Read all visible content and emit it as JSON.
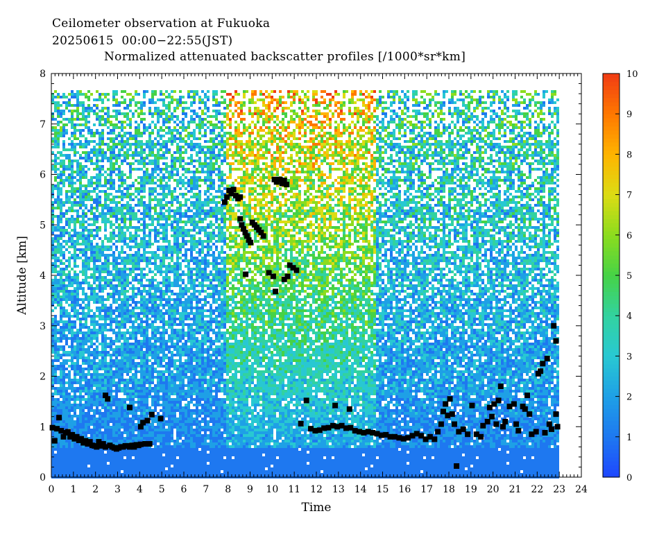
{
  "header": {
    "line1": "Ceilometer observation at Fukuoka",
    "line2": "20250615  00:00−22:55(JST)",
    "line3": "Normalized attenuated backscatter profiles [/1000*sr*km]"
  },
  "chart_data": {
    "type": "heatmap",
    "xlabel": "Time",
    "ylabel": "Altitude [km]",
    "xlim": [
      0,
      24
    ],
    "ylim": [
      0,
      8
    ],
    "x_ticks": [
      "0",
      "1",
      "2",
      "3",
      "4",
      "5",
      "6",
      "7",
      "8",
      "9",
      "10",
      "11",
      "12",
      "13",
      "14",
      "15",
      "16",
      "17",
      "18",
      "19",
      "20",
      "21",
      "22",
      "23",
      "24"
    ],
    "y_ticks": [
      "0",
      "1",
      "2",
      "3",
      "4",
      "5",
      "6",
      "7",
      "8"
    ],
    "data_extent": {
      "x": [
        0,
        22.92
      ],
      "y": [
        0,
        7.67
      ]
    },
    "colorbar": {
      "range": [
        0,
        10
      ],
      "ticks": [
        "0",
        "1",
        "2",
        "3",
        "4",
        "5",
        "6",
        "7",
        "8",
        "9",
        "10"
      ],
      "colors": [
        "#1e46ff",
        "#1e78f0",
        "#1ea0e6",
        "#28c8d2",
        "#32d2a0",
        "#46d246",
        "#8cdc1e",
        "#dcdc14",
        "#ffb400",
        "#ff7800",
        "#f03c14"
      ]
    },
    "background_regimes": [
      {
        "t_start": 0.0,
        "t_end": 7.8,
        "description_level_low": 1.0,
        "level_high": 3.5
      },
      {
        "t_start": 7.8,
        "t_end": 14.7,
        "description_level_low": 1.2,
        "level_high": 7.5
      },
      {
        "t_start": 14.7,
        "t_end": 22.92,
        "description_level_low": 1.0,
        "level_high": 3.8
      }
    ],
    "cloud_base_detections": [
      [
        0.05,
        0.98
      ],
      [
        0.15,
        0.72
      ],
      [
        0.25,
        0.96
      ],
      [
        0.35,
        1.18
      ],
      [
        0.45,
        0.92
      ],
      [
        0.55,
        0.8
      ],
      [
        0.65,
        0.88
      ],
      [
        0.75,
        0.9
      ],
      [
        0.85,
        0.8
      ],
      [
        0.95,
        0.84
      ],
      [
        1.05,
        0.76
      ],
      [
        1.15,
        0.8
      ],
      [
        1.25,
        0.73
      ],
      [
        1.35,
        0.76
      ],
      [
        1.45,
        0.68
      ],
      [
        1.55,
        0.72
      ],
      [
        1.65,
        0.66
      ],
      [
        1.75,
        0.7
      ],
      [
        1.85,
        0.63
      ],
      [
        1.95,
        0.62
      ],
      [
        2.05,
        0.6
      ],
      [
        2.15,
        0.7
      ],
      [
        2.25,
        0.62
      ],
      [
        2.35,
        0.66
      ],
      [
        2.45,
        0.6
      ],
      [
        2.45,
        1.62
      ],
      [
        2.55,
        1.55
      ],
      [
        2.65,
        0.63
      ],
      [
        2.75,
        0.6
      ],
      [
        2.85,
        0.58
      ],
      [
        2.95,
        0.56
      ],
      [
        3.05,
        0.58
      ],
      [
        3.15,
        0.6
      ],
      [
        3.25,
        0.6
      ],
      [
        3.35,
        0.62
      ],
      [
        3.45,
        0.62
      ],
      [
        3.55,
        0.6
      ],
      [
        3.65,
        0.63
      ],
      [
        3.75,
        0.6
      ],
      [
        3.85,
        0.64
      ],
      [
        3.55,
        1.38
      ],
      [
        3.95,
        0.63
      ],
      [
        4.05,
        0.65
      ],
      [
        4.05,
        1.0
      ],
      [
        4.15,
        1.08
      ],
      [
        4.25,
        0.66
      ],
      [
        4.35,
        1.12
      ],
      [
        4.45,
        0.66
      ],
      [
        4.55,
        1.24
      ],
      [
        4.95,
        1.16
      ],
      [
        7.85,
        5.45
      ],
      [
        7.95,
        5.55
      ],
      [
        8.05,
        5.68
      ],
      [
        8.15,
        5.62
      ],
      [
        8.25,
        5.7
      ],
      [
        8.35,
        5.58
      ],
      [
        8.45,
        5.52
      ],
      [
        8.55,
        5.55
      ],
      [
        8.55,
        5.12
      ],
      [
        8.62,
        5.0
      ],
      [
        8.7,
        4.92
      ],
      [
        8.78,
        4.85
      ],
      [
        8.86,
        4.78
      ],
      [
        8.94,
        4.7
      ],
      [
        9.02,
        4.65
      ],
      [
        9.1,
        5.05
      ],
      [
        9.2,
        5.0
      ],
      [
        9.3,
        4.95
      ],
      [
        9.4,
        4.9
      ],
      [
        9.5,
        4.85
      ],
      [
        9.6,
        4.78
      ],
      [
        8.8,
        4.02
      ],
      [
        9.85,
        4.05
      ],
      [
        10.05,
        3.98
      ],
      [
        10.15,
        3.68
      ],
      [
        10.55,
        3.92
      ],
      [
        10.7,
        3.98
      ],
      [
        10.8,
        4.2
      ],
      [
        10.95,
        4.15
      ],
      [
        11.1,
        4.1
      ],
      [
        10.1,
        5.9
      ],
      [
        10.2,
        5.85
      ],
      [
        10.35,
        5.9
      ],
      [
        10.45,
        5.82
      ],
      [
        10.55,
        5.88
      ],
      [
        10.65,
        5.8
      ],
      [
        11.3,
        1.06
      ],
      [
        11.55,
        1.52
      ],
      [
        11.75,
        0.96
      ],
      [
        11.95,
        0.92
      ],
      [
        12.15,
        0.93
      ],
      [
        12.35,
        0.97
      ],
      [
        12.55,
        0.98
      ],
      [
        12.75,
        1.02
      ],
      [
        12.85,
        1.42
      ],
      [
        12.95,
        1.0
      ],
      [
        13.15,
        1.02
      ],
      [
        13.35,
        0.97
      ],
      [
        13.5,
        1.35
      ],
      [
        13.55,
        0.98
      ],
      [
        13.75,
        0.92
      ],
      [
        13.95,
        0.9
      ],
      [
        14.15,
        0.88
      ],
      [
        14.35,
        0.9
      ],
      [
        14.55,
        0.88
      ],
      [
        14.75,
        0.86
      ],
      [
        14.95,
        0.83
      ],
      [
        15.15,
        0.84
      ],
      [
        15.35,
        0.8
      ],
      [
        15.55,
        0.8
      ],
      [
        15.75,
        0.78
      ],
      [
        15.95,
        0.76
      ],
      [
        16.15,
        0.78
      ],
      [
        16.35,
        0.82
      ],
      [
        16.55,
        0.86
      ],
      [
        16.75,
        0.82
      ],
      [
        16.95,
        0.75
      ],
      [
        17.15,
        0.8
      ],
      [
        17.35,
        0.75
      ],
      [
        17.5,
        0.9
      ],
      [
        17.65,
        1.05
      ],
      [
        17.75,
        1.3
      ],
      [
        17.85,
        1.45
      ],
      [
        17.95,
        1.22
      ],
      [
        18.05,
        1.55
      ],
      [
        18.15,
        1.25
      ],
      [
        18.25,
        1.05
      ],
      [
        18.35,
        0.22
      ],
      [
        18.45,
        0.9
      ],
      [
        18.65,
        0.95
      ],
      [
        18.85,
        0.85
      ],
      [
        19.05,
        1.42
      ],
      [
        19.25,
        0.85
      ],
      [
        19.45,
        0.8
      ],
      [
        19.55,
        1.02
      ],
      [
        19.75,
        1.1
      ],
      [
        19.85,
        1.38
      ],
      [
        19.95,
        1.2
      ],
      [
        20.05,
        1.45
      ],
      [
        20.15,
        1.05
      ],
      [
        20.25,
        1.52
      ],
      [
        20.35,
        1.8
      ],
      [
        20.45,
        1.0
      ],
      [
        20.55,
        1.1
      ],
      [
        20.75,
        1.4
      ],
      [
        20.95,
        1.45
      ],
      [
        21.05,
        1.05
      ],
      [
        21.15,
        0.92
      ],
      [
        21.35,
        1.4
      ],
      [
        21.45,
        1.35
      ],
      [
        21.55,
        1.62
      ],
      [
        21.65,
        1.25
      ],
      [
        21.75,
        0.85
      ],
      [
        21.95,
        0.9
      ],
      [
        22.05,
        2.05
      ],
      [
        22.15,
        2.1
      ],
      [
        22.25,
        2.25
      ],
      [
        22.35,
        0.88
      ],
      [
        22.45,
        2.35
      ],
      [
        22.55,
        1.05
      ],
      [
        22.65,
        0.95
      ],
      [
        22.75,
        3.0
      ],
      [
        22.85,
        2.7
      ],
      [
        22.85,
        1.25
      ],
      [
        22.92,
        1.0
      ]
    ]
  }
}
